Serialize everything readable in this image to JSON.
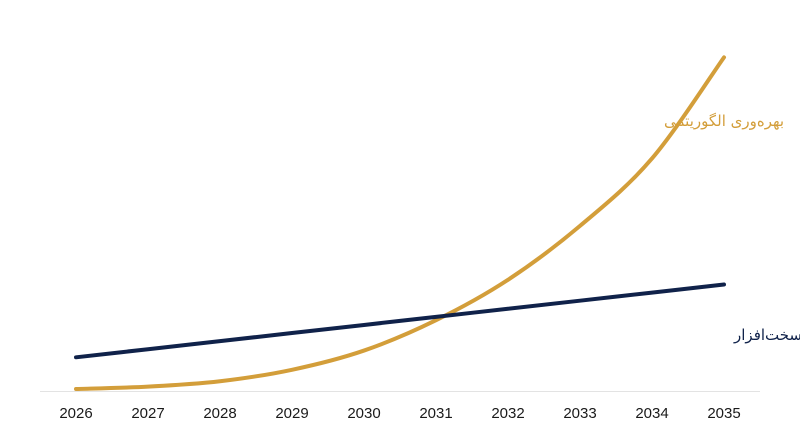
{
  "chart_data": {
    "type": "line",
    "title": "",
    "xlabel": "",
    "ylabel": "",
    "x": [
      2026,
      2027,
      2028,
      2029,
      2030,
      2031,
      2032,
      2033,
      2034,
      2035
    ],
    "x_tick_labels": [
      "2026",
      "2027",
      "2028",
      "2029",
      "2030",
      "2031",
      "2032",
      "2033",
      "2034",
      "2035"
    ],
    "y_axis_visible": false,
    "grid": false,
    "legend": "none",
    "ylim": [
      0,
      100
    ],
    "series": [
      {
        "name": "مقیاس‌بندی سخت‌افزار",
        "color": "#10224a",
        "values": [
          10,
          12.4,
          14.8,
          17.2,
          19.6,
          22,
          24.4,
          26.8,
          29.2,
          31.6
        ]
      },
      {
        "name": "بهره‌وری الگوریتمی",
        "color": "#d39e3a",
        "values": [
          0.6,
          1.3,
          2.9,
          6.3,
          12,
          21,
          33,
          49,
          69,
          99
        ]
      }
    ],
    "baseline_color": "#e3e3e3"
  }
}
